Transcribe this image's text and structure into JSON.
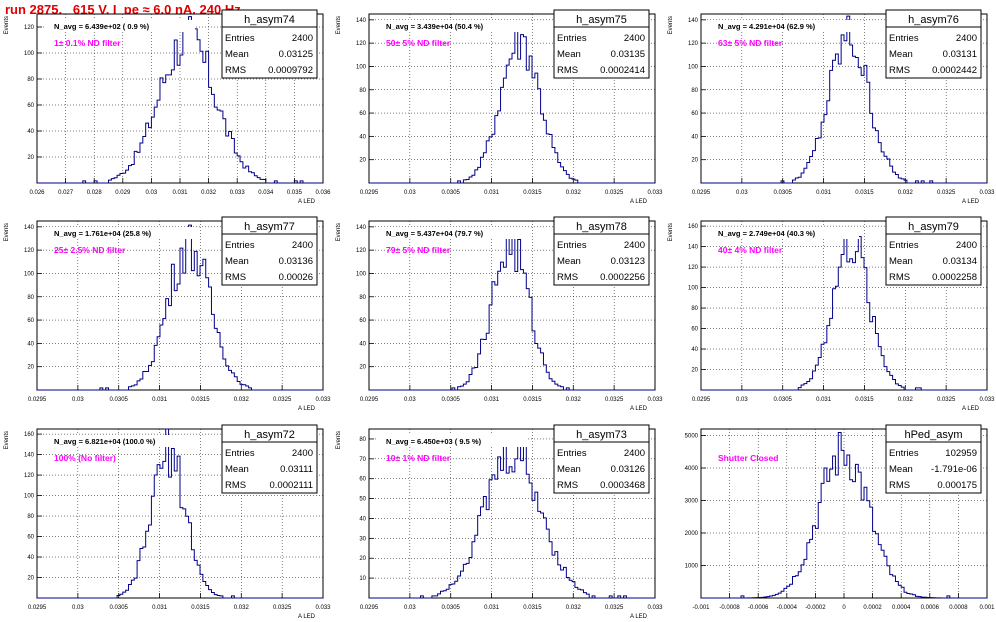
{
  "title": "run 2875,   615 V, I_pe ≈ 6.0 nA, 240 Hz",
  "stats_labels": {
    "entries": "Entries",
    "mean": "Mean",
    "rms": "RMS"
  },
  "colors": {
    "title": "#e00000",
    "histogram": "#00008b",
    "annotation": "#ff00ff"
  },
  "chart_data": [
    {
      "type": "histogram",
      "name": "h_asym74",
      "ylabel": "Events",
      "xlabel": "A_{LED}",
      "navg": "N_avg = 6.439e+02 ( 0.9 %)",
      "annotation": "1± 0.1% ND filter",
      "entries": "2400",
      "mean": "0.03125",
      "rms": "0.0009792",
      "xlim": [
        0.026,
        0.036
      ],
      "ylim": [
        0,
        130
      ],
      "xticks": [
        "0.026",
        "0.027",
        "0.028",
        "0.029",
        "0.03",
        "0.031",
        "0.032",
        "0.033",
        "0.034",
        "0.035",
        "0.036"
      ],
      "yticks": [
        "20",
        "40",
        "60",
        "80",
        "100",
        "120"
      ],
      "grid": true
    },
    {
      "type": "histogram",
      "name": "h_asym75",
      "ylabel": "Events",
      "xlabel": "A_{LED}",
      "navg": "N_avg = 3.439e+04 (50.4 %)",
      "annotation": "50± 5% ND filter",
      "entries": "2400",
      "mean": "0.03135",
      "rms": "0.0002414",
      "xlim": [
        0.0295,
        0.033
      ],
      "ylim": [
        0,
        145
      ],
      "xticks": [
        "0.0295",
        "0.03",
        "0.0305",
        "0.031",
        "0.0315",
        "0.032",
        "0.0325",
        "0.033"
      ],
      "yticks": [
        "20",
        "40",
        "60",
        "80",
        "100",
        "120",
        "140"
      ],
      "grid": true
    },
    {
      "type": "histogram",
      "name": "h_asym76",
      "ylabel": "Events",
      "xlabel": "A_{LED}",
      "navg": "N_avg = 4.291e+04 (62.9 %)",
      "annotation": "63± 5% ND filter",
      "entries": "2400",
      "mean": "0.03131",
      "rms": "0.0002442",
      "xlim": [
        0.0295,
        0.033
      ],
      "ylim": [
        0,
        145
      ],
      "xticks": [
        "0.0295",
        "0.03",
        "0.0305",
        "0.031",
        "0.0315",
        "0.032",
        "0.0325",
        "0.033"
      ],
      "yticks": [
        "20",
        "40",
        "60",
        "80",
        "100",
        "120",
        "140"
      ],
      "grid": true
    },
    {
      "type": "histogram",
      "name": "h_asym77",
      "ylabel": "Events",
      "xlabel": "A_{LED}",
      "navg": "N_avg = 1.761e+04 (25.8 %)",
      "annotation": "25± 2.5% ND filter",
      "entries": "2400",
      "mean": "0.03136",
      "rms": "0.00026",
      "xlim": [
        0.0295,
        0.033
      ],
      "ylim": [
        0,
        145
      ],
      "xticks": [
        "0.0295",
        "0.03",
        "0.0305",
        "0.031",
        "0.0315",
        "0.032",
        "0.0325",
        "0.033"
      ],
      "yticks": [
        "20",
        "40",
        "60",
        "80",
        "100",
        "120",
        "140"
      ],
      "grid": true
    },
    {
      "type": "histogram",
      "name": "h_asym78",
      "ylabel": "Events",
      "xlabel": "A_{LED}",
      "navg": "N_avg = 5.437e+04 (79.7 %)",
      "annotation": "79± 5% ND filter",
      "entries": "2400",
      "mean": "0.03123",
      "rms": "0.0002256",
      "xlim": [
        0.0295,
        0.033
      ],
      "ylim": [
        0,
        145
      ],
      "xticks": [
        "0.0295",
        "0.03",
        "0.0305",
        "0.031",
        "0.0315",
        "0.032",
        "0.0325",
        "0.033"
      ],
      "yticks": [
        "20",
        "40",
        "60",
        "80",
        "100",
        "120",
        "140"
      ],
      "grid": true
    },
    {
      "type": "histogram",
      "name": "h_asym79",
      "ylabel": "Events",
      "xlabel": "A_{LED}",
      "navg": "N_avg = 2.749e+04 (40.3 %)",
      "annotation": "40± 4% ND filter",
      "entries": "2400",
      "mean": "0.03134",
      "rms": "0.0002258",
      "xlim": [
        0.0295,
        0.033
      ],
      "ylim": [
        0,
        165
      ],
      "xticks": [
        "0.0295",
        "0.03",
        "0.0305",
        "0.031",
        "0.0315",
        "0.032",
        "0.0325",
        "0.033"
      ],
      "yticks": [
        "20",
        "40",
        "60",
        "80",
        "100",
        "120",
        "140",
        "160"
      ],
      "grid": true
    },
    {
      "type": "histogram",
      "name": "h_asym72",
      "ylabel": "Events",
      "xlabel": "A_{LED}",
      "navg": "N_avg = 6.821e+04 (100.0 %)",
      "annotation": "100% (No filter)",
      "entries": "2400",
      "mean": "0.03111",
      "rms": "0.0002111",
      "xlim": [
        0.0295,
        0.033
      ],
      "ylim": [
        0,
        165
      ],
      "xticks": [
        "0.0295",
        "0.03",
        "0.0305",
        "0.031",
        "0.0315",
        "0.032",
        "0.0325",
        "0.033"
      ],
      "yticks": [
        "20",
        "40",
        "60",
        "80",
        "100",
        "120",
        "140",
        "160"
      ],
      "grid": true
    },
    {
      "type": "histogram",
      "name": "h_asym73",
      "ylabel": "Events",
      "xlabel": "A_{LED}",
      "navg": "N_avg = 6.450e+03 ( 9.5 %)",
      "annotation": "10± 1% ND filter",
      "entries": "2400",
      "mean": "0.03126",
      "rms": "0.0003468",
      "xlim": [
        0.0295,
        0.033
      ],
      "ylim": [
        0,
        85
      ],
      "xticks": [
        "0.0295",
        "0.03",
        "0.0305",
        "0.031",
        "0.0315",
        "0.032",
        "0.0325",
        "0.033"
      ],
      "yticks": [
        "10",
        "20",
        "30",
        "40",
        "50",
        "60",
        "70",
        "80"
      ],
      "grid": true
    },
    {
      "type": "histogram",
      "name": "hPed_asym",
      "ylabel": "",
      "xlabel": "",
      "navg": "",
      "annotation": "Shutter Closed",
      "entries": "102959",
      "mean": "-1.791e-06",
      "rms": "0.000175",
      "xlim": [
        -0.001,
        0.001
      ],
      "ylim": [
        0,
        5200
      ],
      "xticks": [
        "-0.001",
        "-0.0008",
        "-0.0006",
        "-0.0004",
        "-0.0002",
        "0",
        "0.0002",
        "0.0004",
        "0.0006",
        "0.0008",
        "0.001"
      ],
      "yticks": [
        "1000",
        "2000",
        "3000",
        "4000",
        "5000"
      ],
      "grid": true
    }
  ]
}
